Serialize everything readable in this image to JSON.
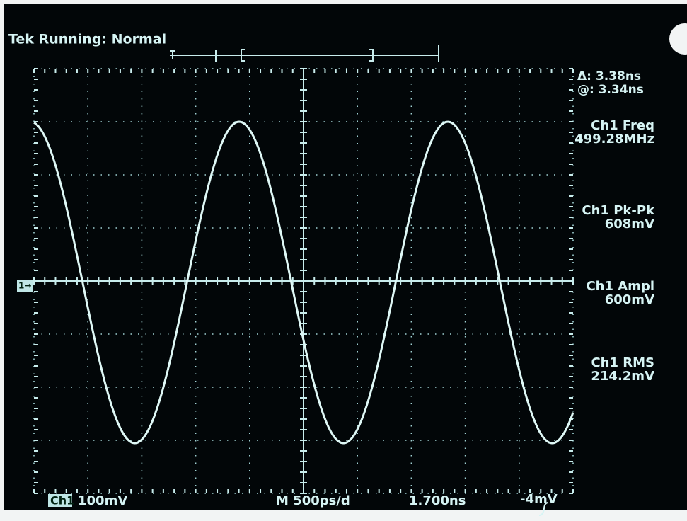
{
  "header": {
    "status": "Tek Running: Normal"
  },
  "cursors": {
    "delta": "Δ: 3.38ns",
    "at": "@: 3.34ns"
  },
  "measurements": [
    {
      "label": "Ch1 Freq",
      "value": "499.28MHz"
    },
    {
      "label": "Ch1 Pk-Pk",
      "value": "608mV"
    },
    {
      "label": "Ch1 Ampl",
      "value": "600mV"
    },
    {
      "label": "Ch1 RMS",
      "value": "214.2mV"
    }
  ],
  "marker": "1→",
  "footer": {
    "channel": "Ch1",
    "scale": "100mV",
    "timebase": "M 500ps/d",
    "position": "1.700ns",
    "trigger": "-4mV"
  }
}
